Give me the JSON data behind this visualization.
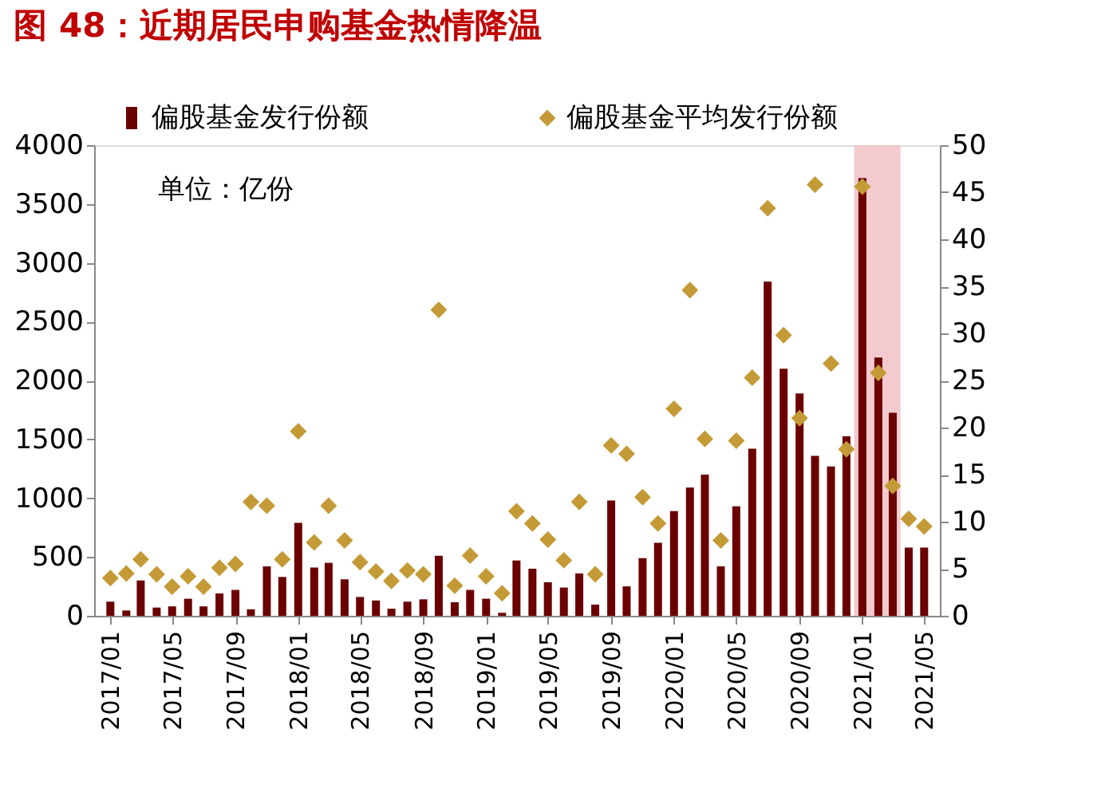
{
  "chart_data": {
    "type": "bar",
    "title": "图 48：近期居民申购基金热情降温",
    "x": [
      "2017-01",
      "2017-02",
      "2017-03",
      "2017-04",
      "2017-05",
      "2017-06",
      "2017-07",
      "2017-08",
      "2017-09",
      "2017-10",
      "2017-11",
      "2017-12",
      "2018-01",
      "2018-02",
      "2018-03",
      "2018-04",
      "2018-05",
      "2018-06",
      "2018-07",
      "2018-08",
      "2018-09",
      "2018-10",
      "2018-11",
      "2018-12",
      "2019-01",
      "2019-02",
      "2019-03",
      "2019-04",
      "2019-05",
      "2019-06",
      "2019-07",
      "2019-08",
      "2019-09",
      "2019-10",
      "2019-11",
      "2019-12",
      "2020-01",
      "2020-02",
      "2020-03",
      "2020-04",
      "2020-05",
      "2020-06",
      "2020-07",
      "2020-08",
      "2020-09",
      "2020-10",
      "2020-11",
      "2020-12",
      "2021-01",
      "2021-02",
      "2021-03",
      "2021-04",
      "2021-05"
    ],
    "series": [
      {
        "name": "偏股基金发行份额",
        "color": "#6b0000",
        "values": [
          120,
          45,
          300,
          70,
          80,
          145,
          80,
          190,
          220,
          55,
          420,
          330,
          790,
          410,
          450,
          310,
          160,
          130,
          60,
          120,
          140,
          510,
          115,
          220,
          145,
          25,
          470,
          400,
          285,
          240,
          360,
          95,
          980,
          250,
          490,
          620,
          890,
          1090,
          1200,
          420,
          930,
          1420,
          2840,
          2100,
          1890,
          1360,
          1270,
          1525,
          3720,
          2195,
          1725,
          580,
          580
        ]
      },
      {
        "name": "偏股基金平均发行份额",
        "type": "scatter",
        "axis": "y2",
        "marker": "diamond",
        "color": "#c49a36",
        "values": [
          4.0,
          4.5,
          6.0,
          4.4,
          3.1,
          4.2,
          3.1,
          5.1,
          5.5,
          12.1,
          11.7,
          6.0,
          19.6,
          7.8,
          11.7,
          8.0,
          5.7,
          4.7,
          3.7,
          4.8,
          4.4,
          32.5,
          3.2,
          6.4,
          4.2,
          2.4,
          11.1,
          9.8,
          8.1,
          5.9,
          12.1,
          4.4,
          18.1,
          17.2,
          12.6,
          9.8,
          22.0,
          34.6,
          18.8,
          8.0,
          18.6,
          25.3,
          43.3,
          29.8,
          21.0,
          45.8,
          26.8,
          17.7,
          45.6,
          25.8,
          13.8,
          10.3,
          9.5
        ]
      }
    ],
    "xlim": [
      "2016-12-16",
      "2021-05-16"
    ],
    "xticks": [
      {
        "value": "2017-01",
        "label": "2017/01"
      },
      {
        "value": "2017-05",
        "label": "2017/05"
      },
      {
        "value": "2017-09",
        "label": "2017/09"
      },
      {
        "value": "2018-01",
        "label": "2018/01"
      },
      {
        "value": "2018-05",
        "label": "2018/05"
      },
      {
        "value": "2018-09",
        "label": "2018/09"
      },
      {
        "value": "2019-01",
        "label": "2019/01"
      },
      {
        "value": "2019-05",
        "label": "2019/05"
      },
      {
        "value": "2019-09",
        "label": "2019/09"
      },
      {
        "value": "2020-01",
        "label": "2020/01"
      },
      {
        "value": "2020-05",
        "label": "2020/05"
      },
      {
        "value": "2020-09",
        "label": "2020/09"
      },
      {
        "value": "2021-01",
        "label": "2021/01"
      },
      {
        "value": "2021-05",
        "label": "2021/05"
      }
    ],
    "ylim": [
      0,
      4000
    ],
    "yticks": [
      0,
      500,
      1000,
      1500,
      2000,
      2500,
      3000,
      3500,
      4000
    ],
    "y2lim": [
      0,
      50
    ],
    "y2ticks": [
      0,
      5,
      10,
      15,
      20,
      25,
      30,
      35,
      40,
      45,
      50
    ],
    "bands": [
      {
        "axis": "x",
        "from": "2020-12-16",
        "to": "2021-03-16",
        "color": "#f2c4c8"
      }
    ],
    "annotations": [
      "单位：亿份"
    ],
    "legend": "top",
    "grid": false
  }
}
